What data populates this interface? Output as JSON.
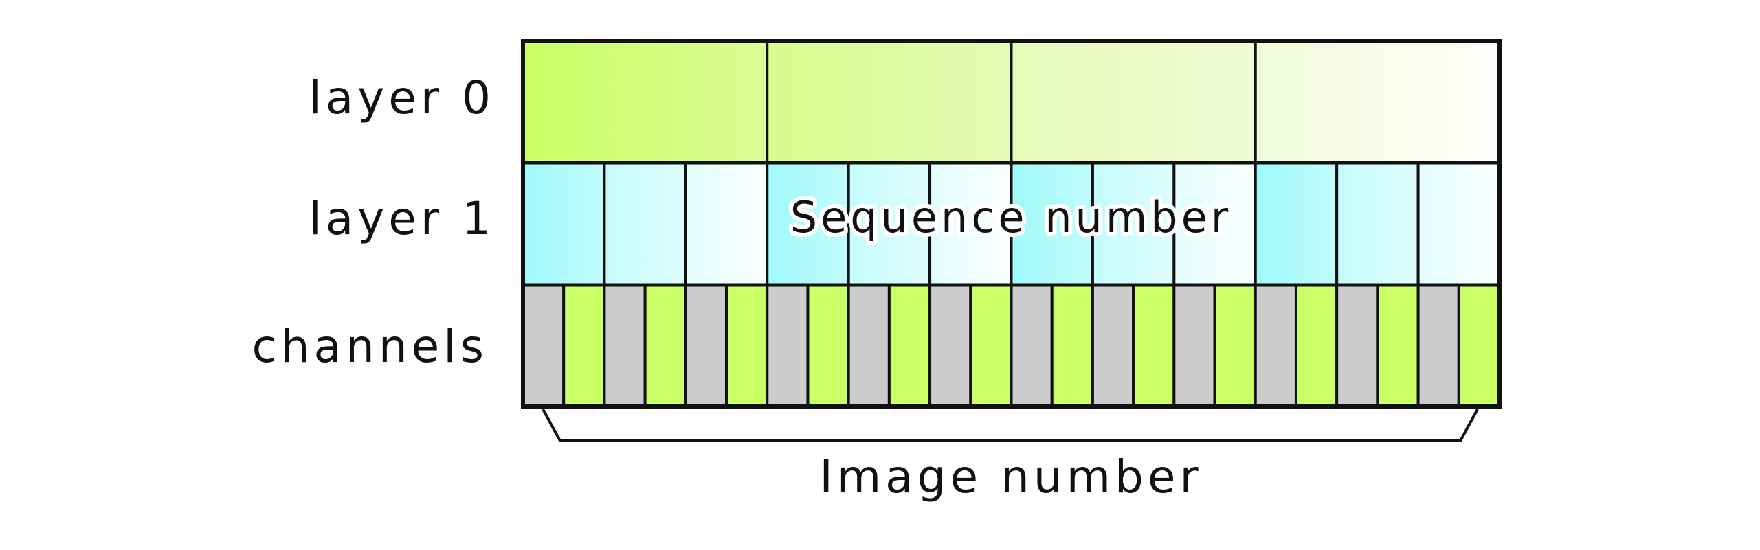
{
  "labels": {
    "layer0": "layer 0",
    "layer1": "layer 1",
    "channels": "channels",
    "sequence": "Sequence number",
    "image": "Image number"
  },
  "structure": {
    "layer0_blocks": 4,
    "layer1_blocks_per_group": 3,
    "channel_cells": 24
  },
  "colors": {
    "layer0_start": "#cbff66",
    "layer0_mid": "#e6fab8",
    "layer1_start": "#a6fbfb",
    "channel_gray": "#cccccc",
    "channel_green": "#cbff66",
    "border": "#111111"
  }
}
